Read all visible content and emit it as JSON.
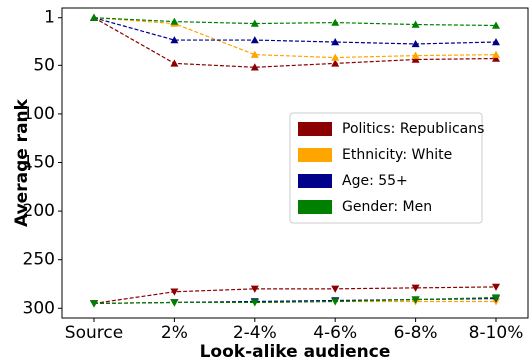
{
  "chart_data": {
    "type": "line",
    "x_label": "Look-alike audience",
    "y_label": "Average rank",
    "categories": [
      "Source",
      "2%",
      "2-4%",
      "4-6%",
      "6-8%",
      "8-10%"
    ],
    "series": [
      {
        "name": "Politics: Republicans",
        "color": "#8b0000",
        "values": [
          1,
          48,
          52,
          48,
          44,
          43
        ],
        "counterpart_values": [
          295,
          283,
          280,
          280,
          279,
          278
        ]
      },
      {
        "name": "Ethnicity: White",
        "color": "#ffa500",
        "values": [
          1,
          7,
          39,
          42,
          40,
          39
        ],
        "counterpart_values": [
          295,
          294,
          294,
          293,
          293,
          293
        ]
      },
      {
        "name": "Age: 55+",
        "color": "#00008b",
        "values": [
          1,
          24,
          24,
          26,
          28,
          26
        ],
        "counterpart_values": [
          295,
          294,
          293,
          292,
          291,
          290
        ]
      },
      {
        "name": "Gender: Men",
        "color": "#008000",
        "values": [
          1,
          5,
          7,
          6,
          8,
          9
        ],
        "counterpart_values": [
          295,
          294,
          294,
          293,
          291,
          289
        ]
      }
    ],
    "ylim": [
      -9,
      310
    ],
    "y_inverted": true,
    "yticks": [
      1,
      50,
      100,
      150,
      200,
      250,
      300
    ],
    "legend": "right"
  }
}
